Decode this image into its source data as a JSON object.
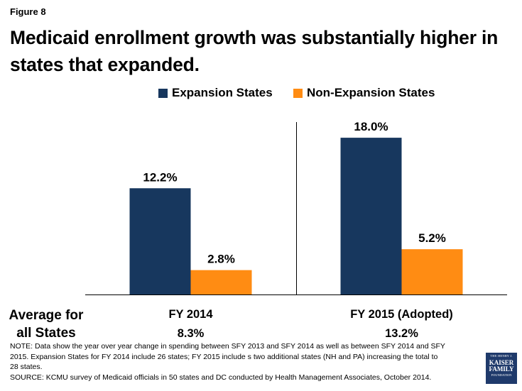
{
  "figure_label": "Figure 8",
  "title": "Medicaid enrollment growth was substantially higher in states that expanded.",
  "avg_label": "Average for all States",
  "colors": {
    "expansion": "#17375e",
    "non_expansion": "#ff8c13"
  },
  "chart_data": {
    "type": "bar",
    "categories": [
      "FY 2014",
      "FY 2015 (Adopted)"
    ],
    "series": [
      {
        "name": "Expansion States",
        "values": [
          12.2,
          18.0
        ],
        "labels": [
          "12.2%",
          "18.0%"
        ]
      },
      {
        "name": "Non-Expansion States",
        "values": [
          2.8,
          5.2
        ],
        "labels": [
          "2.8%",
          "5.2%"
        ]
      }
    ],
    "averages": [
      "8.3%",
      "13.2%"
    ],
    "title": "Medicaid enrollment growth was substantially higher in states that expanded.",
    "xlabel": "",
    "ylabel": "",
    "ylim": [
      0,
      22
    ],
    "grid": false,
    "legend": "top-right"
  },
  "note_lines": [
    "NOTE: Data show the year over year change in spending between SFY 2013 and SFY 2014 as well as between SFY 2014 and SFY",
    "2015. Expansion States for FY 2014 include 26 states;  FY 2015 include s two additional states (NH and PA) increasing the total to",
    "28 states.",
    "SOURCE: KCMU survey of Medicaid officials in 50 states and DC conducted by Health Management Associates, October 2014."
  ],
  "logo": {
    "line1": "THE HENRY J.",
    "line2": "KAISER",
    "line3": "FAMILY",
    "line4": "FOUNDATION"
  }
}
